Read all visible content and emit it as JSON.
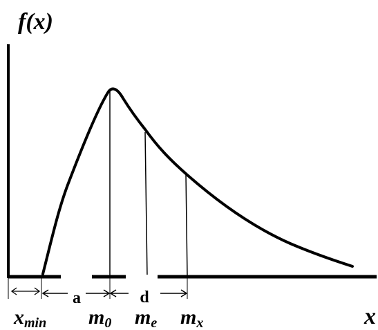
{
  "diagram": {
    "y_axis_label": "f(x)",
    "x_axis_label": "x",
    "markers": {
      "x_min": {
        "base": "x",
        "sub": "min"
      },
      "m_0": {
        "base": "m",
        "sub": "0"
      },
      "m_e": {
        "base": "m",
        "sub": "e"
      },
      "m_x": {
        "base": "m",
        "sub": "x"
      }
    },
    "intervals": {
      "a": "a",
      "d": "d"
    }
  }
}
